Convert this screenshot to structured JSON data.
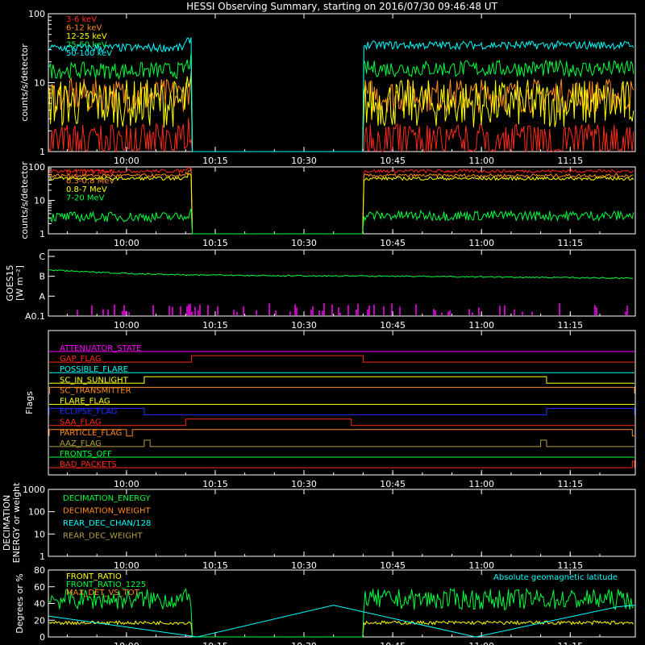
{
  "title": "HESSI Observing Summary, starting on 2016/07/30 09:46:48 UT",
  "colors": {
    "background": "#000000",
    "axes": "#ffffff",
    "red": "#ff2a1a",
    "orange": "#ff8c1a",
    "yellow": "#ffff00",
    "green": "#00ff40",
    "cyan": "#00ffff",
    "magenta": "#ff00ff",
    "blue": "#2030ff",
    "olive": "#b0a040"
  },
  "time_axis": {
    "start": "09:46:48",
    "end": "11:26:00",
    "ticks": [
      "10:00",
      "10:15",
      "10:30",
      "10:45",
      "11:00",
      "11:15"
    ]
  },
  "chart_data": [
    {
      "id": "panel-1",
      "type": "line",
      "ylabel": "counts/s/detector",
      "yscale": "log",
      "ylim": [
        1,
        100
      ],
      "yticks": [
        "1",
        "10",
        "100"
      ],
      "gap": [
        "10:11",
        "10:40"
      ],
      "series": [
        {
          "name": "3-6 keV",
          "color": "#ff2a1a",
          "level_before": 1.8,
          "level_after": 1.8,
          "noise": 0.6,
          "spiky": true
        },
        {
          "name": "6-12 keV",
          "color": "#ff8c1a",
          "level_before": 6.5,
          "level_after": 6.5,
          "noise": 0.25,
          "spiky": false
        },
        {
          "name": "12-25 keV",
          "color": "#ffff00",
          "level_before": 5.0,
          "level_after": 5.0,
          "noise": 0.35,
          "spiky": false
        },
        {
          "name": "25-50 keV",
          "color": "#00ff40",
          "level_before": 15,
          "level_after": 16,
          "noise": 0.12,
          "spiky": false
        },
        {
          "name": "50-100 keV",
          "color": "#00ffff",
          "level_before": 32,
          "level_after": 35,
          "noise": 0.06,
          "spiky": false
        }
      ]
    },
    {
      "id": "panel-2",
      "type": "line",
      "ylabel": "counts/s/detector",
      "yscale": "log",
      "ylim": [
        1,
        100
      ],
      "yticks": [
        "1",
        "10",
        "100"
      ],
      "gap": [
        "10:11",
        "10:40"
      ],
      "series": [
        {
          "name": "0.1-0.3 MeV",
          "color": "#ff2a1a",
          "level_before": 75,
          "level_after": 75,
          "noise": 0.05,
          "spiky": false
        },
        {
          "name": "0.3-0.8 MeV",
          "color": "#ff8c1a",
          "level_before": 55,
          "level_after": 55,
          "noise": 0.05,
          "spiky": false
        },
        {
          "name": "0.8-7 MeV",
          "color": "#ffff00",
          "level_before": 45,
          "level_after": 45,
          "noise": 0.05,
          "spiky": false
        },
        {
          "name": "7-20 MeV",
          "color": "#00ff40",
          "level_before": 3.2,
          "level_after": 3.5,
          "noise": 0.15,
          "spiky": false
        }
      ]
    },
    {
      "id": "panel-3",
      "type": "line",
      "ylabel": "GOES15",
      "ylabel_units": "[W m⁻²]",
      "yscale": "log",
      "yticks": [
        "A0.1",
        "A",
        "B",
        "C"
      ],
      "series": [
        {
          "name": "GOES15",
          "color": "#00ff40",
          "start_level": "B",
          "end_level": "B"
        }
      ],
      "bars": {
        "color": "#ff00ff"
      }
    },
    {
      "id": "panel-4",
      "type": "table",
      "ylabel": "Flags",
      "flags": [
        {
          "name": "ATTENUATOR_STATE",
          "color": "#ff00ff",
          "on": []
        },
        {
          "name": "GAP_FLAG",
          "color": "#ff2a1a",
          "on": [
            [
              "10:11",
              "10:40"
            ]
          ]
        },
        {
          "name": "POSSIBLE_FLARE",
          "color": "#00ffff",
          "on": []
        },
        {
          "name": "SC_IN_SUNLIGHT",
          "color": "#ffff00",
          "on": [
            [
              "10:03",
              "11:11"
            ]
          ]
        },
        {
          "name": "SC_TRANSMITTER",
          "color": "#ff8c1a",
          "on": [
            [
              "09:47",
              "11:26"
            ]
          ]
        },
        {
          "name": "FLARE_FLAG",
          "color": "#ffff00",
          "on": []
        },
        {
          "name": "ECLIPSE_FLAG",
          "color": "#2030ff",
          "on": [
            [
              "09:46:48",
              "10:03"
            ],
            [
              "11:11",
              "11:26"
            ]
          ]
        },
        {
          "name": "SAA_FLAG",
          "color": "#ff2a1a",
          "on": [
            [
              "10:10",
              "10:38"
            ]
          ]
        },
        {
          "name": "PARTICLE_FLAG",
          "color": "#ff8c1a",
          "on": [
            [
              "09:46:48",
              "10:00"
            ],
            [
              "10:01",
              "11:25:30"
            ]
          ]
        },
        {
          "name": "AAZ_FLAG",
          "color": "#b0a040",
          "on": [
            [
              "10:03",
              "10:04"
            ],
            [
              "11:10",
              "11:11"
            ]
          ]
        },
        {
          "name": "FRONTS_OFF",
          "color": "#00ff40",
          "on": []
        },
        {
          "name": "BAD_PACKETS",
          "color": "#ff2a1a",
          "on": [
            [
              "11:25:30",
              "11:26"
            ]
          ]
        }
      ]
    },
    {
      "id": "panel-5",
      "type": "line",
      "ylabel": "DECIMATION",
      "ylabel2": "ENERGY or weight",
      "yscale": "log",
      "ylim": [
        1,
        1000
      ],
      "yticks": [
        "1",
        "10",
        "100",
        "1000"
      ],
      "series": [
        {
          "name": "DECIMATION_ENERGY",
          "color": "#00ff40"
        },
        {
          "name": "DECIMATION_WEIGHT",
          "color": "#ff8c1a"
        },
        {
          "name": "REAR_DEC_CHAN/128",
          "color": "#00ffff"
        },
        {
          "name": "REAR_DEC_WEIGHT",
          "color": "#b0a040"
        }
      ]
    },
    {
      "id": "panel-6",
      "type": "line",
      "ylabel": "Degrees or %",
      "ylim": [
        0,
        80
      ],
      "yticks": [
        "0",
        "20",
        "40",
        "60",
        "80"
      ],
      "note": "Absolute geomagnetic latitude",
      "series": [
        {
          "name": "FRONT_RATIO",
          "color": "#ffff00",
          "level": 17
        },
        {
          "name": "FRONT_RATIO_1225",
          "color": "#00ff40",
          "level": 45
        },
        {
          "name": "MAX_DET_VS_TOT",
          "color": "#ff8c1a",
          "level": 0
        },
        {
          "name": "Absolute geomagnetic latitude",
          "color": "#00ffff",
          "x": [
            "09:46:48",
            "10:12",
            "10:35",
            "10:59",
            "11:23",
            "11:26"
          ],
          "y": [
            25,
            0,
            38,
            0,
            36,
            38
          ]
        }
      ]
    }
  ]
}
